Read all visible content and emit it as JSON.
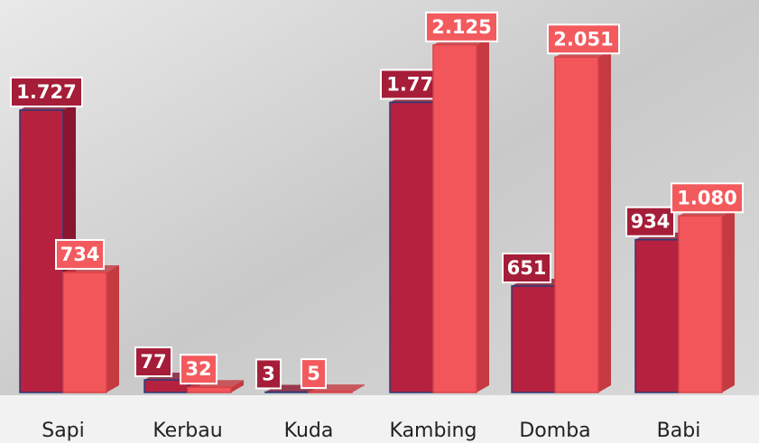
{
  "chart_data": {
    "type": "bar",
    "categories": [
      "Sapi",
      "Kerbau",
      "Kuda",
      "Kambing",
      "Domba",
      "Babi"
    ],
    "series": [
      {
        "color": "#b5213e",
        "values": [
          1727,
          77,
          3,
          1774,
          651,
          934
        ],
        "value_labels": [
          "1.727",
          "77",
          "3",
          "1.774",
          "651",
          "934"
        ]
      },
      {
        "color": "#f2555a",
        "values": [
          734,
          32,
          5,
          2125,
          2051,
          1080
        ],
        "value_labels": [
          "734",
          "32",
          "5",
          "2.125",
          "2.051",
          "1.080"
        ]
      }
    ],
    "ylim": [
      0,
      2400
    ]
  }
}
